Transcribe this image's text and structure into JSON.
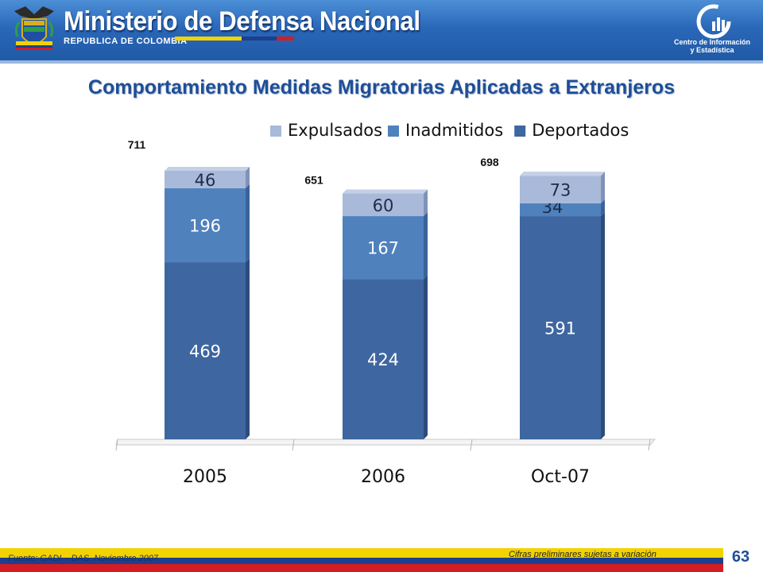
{
  "header": {
    "ministry": "Ministerio de Defensa Nacional",
    "republic": "REPUBLICA DE COLOMBIA",
    "center_line1": "Centro de Información",
    "center_line2": "y Estadística"
  },
  "slide": {
    "title": "Comportamiento Medidas Migratorias Aplicadas a Extranjeros",
    "source": "Fuente: GADI – DAS.  Noviembre 2007",
    "note": "Cifras preliminares sujetas a variación",
    "page_number": "63"
  },
  "colors": {
    "deportados": "#3e66a0",
    "inadmitidos": "#4f81bd",
    "expulsados": "#a9b9d9",
    "header_blue": "#2a67b8",
    "title_blue": "#1f4e96"
  },
  "chart_data": {
    "type": "bar",
    "stacked": true,
    "categories": [
      "2005",
      "2006",
      "Oct-07"
    ],
    "series": [
      {
        "name": "Deportados",
        "values": [
          469,
          424,
          591
        ]
      },
      {
        "name": "Inadmitidos",
        "values": [
          196,
          167,
          34
        ]
      },
      {
        "name": "Expulsados",
        "values": [
          46,
          60,
          73
        ]
      }
    ],
    "totals": [
      711,
      651,
      698
    ],
    "legend": {
      "position": "top-right",
      "order": [
        "Expulsados",
        "Inadmitidos",
        "Deportados"
      ]
    },
    "ylim": [
      0,
      711
    ],
    "grid": false
  }
}
